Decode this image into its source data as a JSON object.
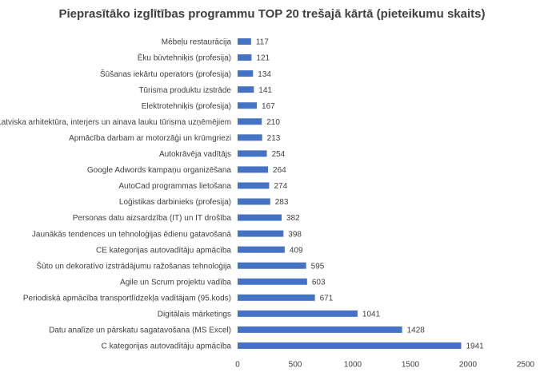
{
  "chart_data": {
    "type": "bar",
    "orientation": "horizontal",
    "title": "Pieprasītāko izglītības programmu TOP 20 trešajā kārtā (pieteikumu skaits)",
    "categories": [
      "Mēbeļu restaurācija",
      "Ēku būvtehniķis (profesija)",
      "Šūšanas iekārtu operators (profesija)",
      "Tūrisma produktu izstrāde",
      "Elektrotehniķis (profesija)",
      "Latviska arhitektūra, interjers un ainava lauku tūrisma uzņēmējiem",
      "Apmācība darbam ar motorzāģi un krūmgriezi",
      "Autokrāvēja vadītājs",
      "Google Adwords kampaņu organizēšana",
      "AutoCad programmas lietošana",
      "Loģistikas darbinieks (profesija)",
      "Personas datu aizsardzība (IT) un IT drošība",
      "Jaunākās tendences un tehnoloģijas ēdienu gatavošanā",
      "CE kategorijas autovadītāju apmācība",
      "Šūto un dekoratīvo izstrādājumu ražošanas tehnoloģija",
      "Agile un Scrum projektu vadība",
      "Periodiskā apmācība transportlīdzekļa vadītājam (95.kods)",
      "Digitālais mārketings",
      "Datu analīze un pārskatu sagatavošana (MS Excel)",
      "C kategorijas autovadītāju apmācība"
    ],
    "values": [
      117,
      121,
      134,
      141,
      167,
      210,
      213,
      254,
      264,
      274,
      283,
      382,
      398,
      409,
      595,
      603,
      671,
      1041,
      1428,
      1941
    ],
    "color": "#4472c4",
    "xlim": [
      0,
      2500
    ],
    "xticks": [
      0,
      500,
      1000,
      1500,
      2000,
      2500
    ],
    "grid": false
  }
}
